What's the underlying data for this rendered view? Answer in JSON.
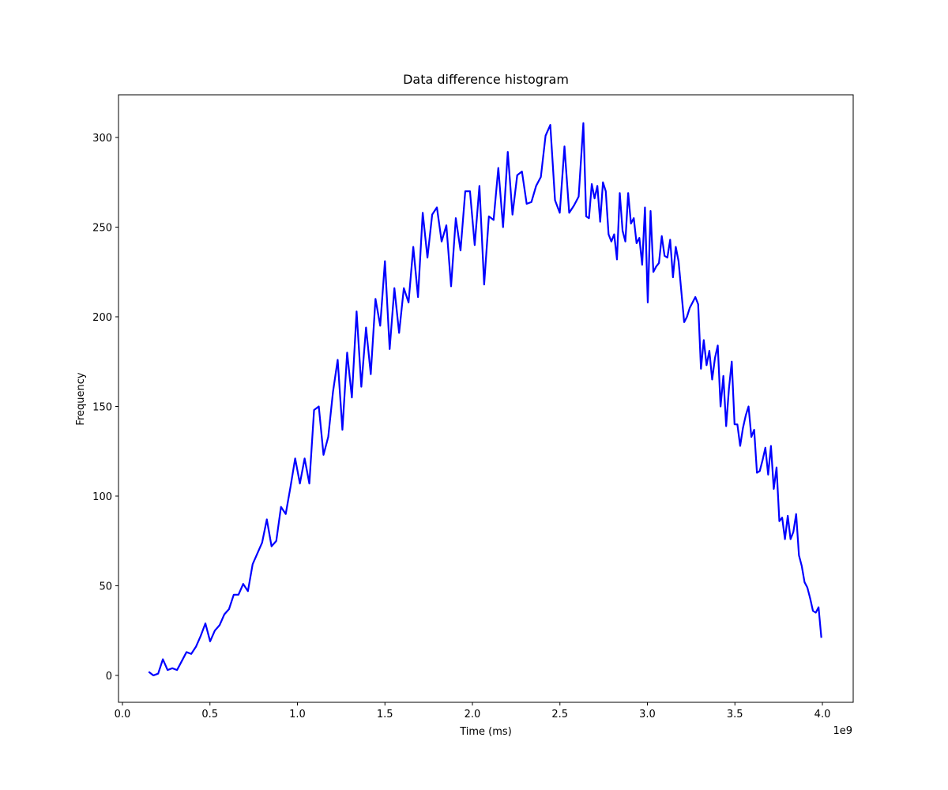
{
  "chart_data": {
    "type": "line",
    "title": "Data difference histogram",
    "xlabel": "Time (ms)",
    "ylabel": "Frequency",
    "x_offset_text": "1e9",
    "xlim": [
      -0.0226,
      4.176
    ],
    "ylim": [
      -15,
      323.8
    ],
    "xticks": [
      {
        "value": 0,
        "label": "0.0"
      },
      0.5,
      {
        "value": 1,
        "label": "1.0"
      },
      1.5,
      {
        "value": 2,
        "label": "2.0"
      },
      2.5,
      {
        "value": 3,
        "label": "3.0"
      },
      3.5,
      {
        "value": 4,
        "label": "4.0"
      }
    ],
    "yticks": [
      0,
      50,
      100,
      150,
      200,
      250,
      300
    ],
    "grid": false,
    "x": [
      0.15,
      0.177,
      0.204,
      0.231,
      0.258,
      0.285,
      0.312,
      0.339,
      0.366,
      0.393,
      0.42,
      0.447,
      0.474,
      0.501,
      0.528,
      0.555,
      0.582,
      0.609,
      0.636,
      0.663,
      0.69,
      0.717,
      0.744,
      0.771,
      0.798,
      0.825,
      0.852,
      0.879,
      0.906,
      0.933,
      0.96,
      0.987,
      1.014,
      1.041,
      1.068,
      1.095,
      1.122,
      1.149,
      1.176,
      1.203,
      1.23,
      1.257,
      1.284,
      1.311,
      1.338,
      1.365,
      1.392,
      1.419,
      1.446,
      1.473,
      1.5,
      1.527,
      1.554,
      1.581,
      1.608,
      1.635,
      1.662,
      1.689,
      1.716,
      1.743,
      1.77,
      1.797,
      1.824,
      1.851,
      1.878,
      1.905,
      1.932,
      1.959,
      1.986,
      2.013,
      2.04,
      2.067,
      2.094,
      2.121,
      2.148,
      2.175,
      2.202,
      2.229,
      2.256,
      2.283,
      2.31,
      2.337,
      2.364,
      2.391,
      2.418,
      2.445,
      2.472,
      2.499,
      2.526,
      2.553,
      2.58,
      2.607,
      2.634,
      2.65,
      2.666,
      2.682,
      2.698,
      2.714,
      2.73,
      2.746,
      2.762,
      2.778,
      2.794,
      2.81,
      2.826,
      2.842,
      2.858,
      2.874,
      2.89,
      2.906,
      2.922,
      2.938,
      2.954,
      2.97,
      2.986,
      3.002,
      3.018,
      3.034,
      3.05,
      3.066,
      3.082,
      3.098,
      3.114,
      3.13,
      3.146,
      3.162,
      3.178,
      3.194,
      3.21,
      3.226,
      3.242,
      3.258,
      3.274,
      3.29,
      3.306,
      3.322,
      3.338,
      3.354,
      3.37,
      3.386,
      3.402,
      3.418,
      3.434,
      3.45,
      3.466,
      3.482,
      3.498,
      3.514,
      3.53,
      3.546,
      3.562,
      3.578,
      3.594,
      3.61,
      3.626,
      3.642,
      3.658,
      3.674,
      3.69,
      3.706,
      3.722,
      3.738,
      3.754,
      3.77,
      3.786,
      3.802,
      3.818,
      3.834,
      3.85,
      3.866,
      3.882,
      3.898,
      3.914,
      3.93,
      3.946,
      3.962,
      3.978,
      3.994
    ],
    "series": [
      {
        "color": "#0000ff",
        "values": [
          2,
          0,
          1,
          9,
          3,
          4,
          3,
          8,
          13,
          12,
          16,
          22,
          29,
          19,
          25,
          28,
          34,
          37,
          45,
          45,
          51,
          47,
          62,
          68,
          74,
          87,
          72,
          75,
          94,
          90,
          105,
          121,
          107,
          121,
          107,
          148,
          150,
          123,
          133,
          158,
          176,
          137,
          180,
          155,
          203,
          161,
          194,
          168,
          210,
          195,
          231,
          182,
          216,
          191,
          216,
          208,
          239,
          211,
          258,
          233,
          257,
          261,
          242,
          251,
          217,
          255,
          237,
          270,
          270,
          240,
          273,
          218,
          256,
          254,
          283,
          250,
          292,
          257,
          279,
          281,
          263,
          264,
          273,
          278,
          301,
          307,
          265,
          258,
          295,
          258,
          262,
          267,
          308,
          256,
          255,
          274,
          266,
          273,
          253,
          275,
          270,
          246,
          242,
          246,
          232,
          269,
          248,
          242,
          269,
          252,
          255,
          241,
          244,
          229,
          261,
          208,
          259,
          225,
          228,
          230,
          245,
          234,
          233,
          243,
          222,
          239,
          231,
          214,
          197,
          200,
          205,
          208,
          211,
          207,
          171,
          187,
          173,
          181,
          165,
          177,
          184,
          150,
          167,
          139,
          160,
          175,
          140,
          140,
          128,
          138,
          145,
          150,
          133,
          137,
          113,
          114,
          120,
          127,
          112,
          128,
          104,
          116,
          86,
          88,
          76,
          89,
          76,
          80,
          90,
          67,
          61,
          52,
          49,
          43,
          36,
          35,
          38,
          21
        ]
      }
    ]
  }
}
